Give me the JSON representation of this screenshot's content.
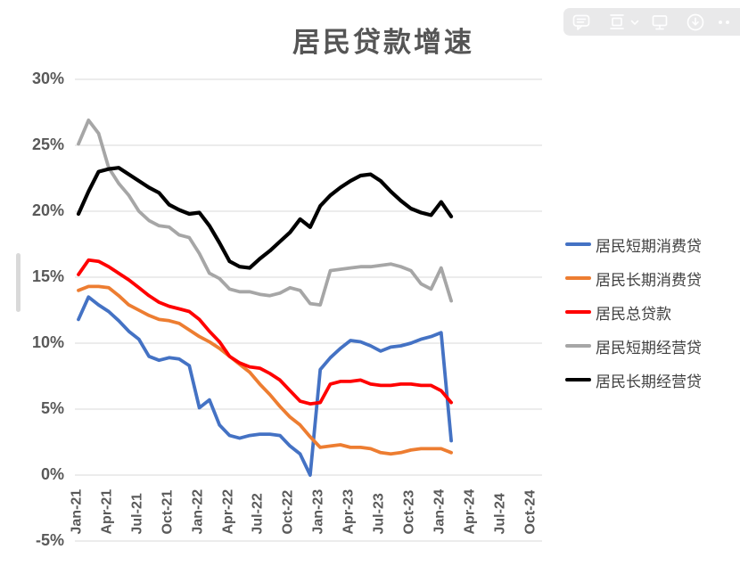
{
  "title": "居民贷款增速",
  "toolbar": {
    "icons": [
      "comment-icon",
      "page-view-icon",
      "chevron-down-icon",
      "display-icon",
      "download-icon",
      "more-icon"
    ]
  },
  "axis": {
    "y_ticks": [
      "30%",
      "25%",
      "20%",
      "15%",
      "10%",
      "5%",
      "0%",
      "-5%"
    ],
    "y_values": [
      30,
      25,
      20,
      15,
      10,
      5,
      0,
      -5
    ],
    "x_ticks": [
      "Jan-21",
      "Apr-21",
      "Jul-21",
      "Oct-21",
      "Jan-22",
      "Apr-22",
      "Jul-22",
      "Oct-22",
      "Jan-23",
      "Apr-23",
      "Jul-23",
      "Oct-23",
      "Jan-24",
      "Apr-24",
      "Jul-24",
      "Oct-24"
    ]
  },
  "chart_data": {
    "type": "line",
    "title": "居民贷款增速",
    "xlabel": "",
    "ylabel": "",
    "ylim": [
      -5,
      30
    ],
    "grid": true,
    "legend_position": "right",
    "x_axis_range": [
      "Jan-21",
      "Oct-24"
    ],
    "categories": [
      "Jan-21",
      "Feb-21",
      "Mar-21",
      "Apr-21",
      "May-21",
      "Jun-21",
      "Jul-21",
      "Aug-21",
      "Sep-21",
      "Oct-21",
      "Nov-21",
      "Dec-21",
      "Jan-22",
      "Feb-22",
      "Mar-22",
      "Apr-22",
      "May-22",
      "Jun-22",
      "Jul-22",
      "Aug-22",
      "Sep-22",
      "Oct-22",
      "Nov-22",
      "Dec-22",
      "Jan-23",
      "Feb-23",
      "Mar-23",
      "Apr-23",
      "May-23",
      "Jun-23",
      "Jul-23",
      "Aug-23",
      "Sep-23",
      "Oct-23",
      "Nov-23",
      "Dec-23",
      "Jan-24",
      "Feb-24"
    ],
    "series": [
      {
        "name": "居民短期消费贷",
        "color": "#4472C4",
        "values": [
          11.8,
          13.5,
          12.9,
          12.4,
          11.7,
          10.9,
          10.3,
          9.0,
          8.7,
          8.9,
          8.8,
          8.3,
          5.1,
          5.7,
          3.8,
          3.0,
          2.8,
          3.0,
          3.1,
          3.1,
          3.0,
          2.2,
          1.6,
          0.0,
          8.0,
          8.9,
          9.6,
          10.2,
          10.1,
          9.8,
          9.4,
          9.7,
          9.8,
          10.0,
          10.3,
          10.5,
          10.8,
          2.6
        ]
      },
      {
        "name": "居民长期消费贷",
        "color": "#ED7D31",
        "values": [
          14.0,
          14.3,
          14.3,
          14.2,
          13.6,
          12.9,
          12.5,
          12.1,
          11.8,
          11.7,
          11.5,
          11.0,
          10.5,
          10.1,
          9.6,
          9.0,
          8.4,
          7.8,
          6.9,
          6.1,
          5.2,
          4.4,
          3.8,
          2.9,
          2.1,
          2.2,
          2.3,
          2.1,
          2.1,
          2.0,
          1.7,
          1.6,
          1.7,
          1.9,
          2.0,
          2.0,
          2.0,
          1.7
        ]
      },
      {
        "name": "居民总贷款",
        "color": "#FF0000",
        "values": [
          15.2,
          16.3,
          16.2,
          15.8,
          15.3,
          14.8,
          14.2,
          13.6,
          13.1,
          12.8,
          12.6,
          12.4,
          11.8,
          10.9,
          10.1,
          9.0,
          8.5,
          8.2,
          8.1,
          7.7,
          7.2,
          6.4,
          5.6,
          5.4,
          5.5,
          6.9,
          7.1,
          7.1,
          7.2,
          6.9,
          6.8,
          6.8,
          6.9,
          6.9,
          6.8,
          6.8,
          6.4,
          5.5
        ]
      },
      {
        "name": "居民短期经营贷",
        "color": "#A6A6A6",
        "values": [
          25.1,
          26.9,
          25.9,
          23.3,
          22.1,
          21.2,
          20.0,
          19.3,
          18.9,
          18.8,
          18.2,
          18.0,
          16.8,
          15.3,
          14.9,
          14.1,
          13.9,
          13.9,
          13.7,
          13.6,
          13.8,
          14.2,
          14.0,
          13.0,
          12.9,
          15.5,
          15.6,
          15.7,
          15.8,
          15.8,
          15.9,
          16.0,
          15.8,
          15.5,
          14.5,
          14.1,
          15.7,
          13.2
        ]
      },
      {
        "name": "居民长期经营贷",
        "color": "#000000",
        "values": [
          19.8,
          21.5,
          23.0,
          23.2,
          23.3,
          22.8,
          22.3,
          21.8,
          21.4,
          20.5,
          20.1,
          19.8,
          19.9,
          18.9,
          17.6,
          16.2,
          15.8,
          15.7,
          16.4,
          17.0,
          17.7,
          18.4,
          19.4,
          18.8,
          20.4,
          21.2,
          21.8,
          22.3,
          22.7,
          22.8,
          22.3,
          21.5,
          20.8,
          20.2,
          19.9,
          19.7,
          20.7,
          19.6
        ]
      }
    ]
  }
}
